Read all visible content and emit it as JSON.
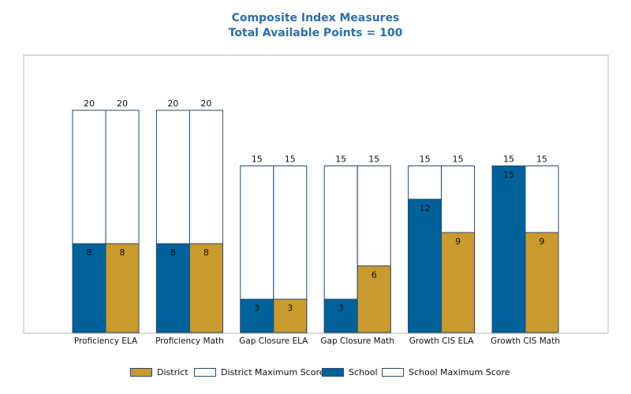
{
  "chart_data": {
    "type": "bar",
    "title": "Composite Index Measures",
    "subtitle": "Total Available Points = 100",
    "categories": [
      "Proficiency ELA",
      "Proficiency Math",
      "Gap Closure ELA",
      "Gap Closure Math",
      "Growth CIS ELA",
      "Growth CIS Math"
    ],
    "series": [
      {
        "name": "School",
        "color": "#00629b",
        "values": [
          8,
          8,
          3,
          3,
          12,
          15
        ]
      },
      {
        "name": "School Maximum Score",
        "color": "#ffffff",
        "values": [
          20,
          20,
          15,
          15,
          15,
          15
        ]
      },
      {
        "name": "District",
        "color": "#c99a2e",
        "values": [
          8,
          8,
          3,
          6,
          9,
          9
        ]
      },
      {
        "name": "District Maximum Score",
        "color": "#ffffff",
        "values": [
          20,
          20,
          15,
          15,
          15,
          15
        ]
      }
    ],
    "ylim": [
      0,
      25
    ],
    "grid": false,
    "legend_position": "bottom"
  },
  "legend": [
    {
      "label": "District",
      "color": "#c99a2e"
    },
    {
      "label": "District Maximum Score",
      "color": "#ffffff"
    },
    {
      "label": "School",
      "color": "#00629b"
    },
    {
      "label": "School Maximum Score",
      "color": "#ffffff"
    }
  ],
  "colors": {
    "title": "#2f6ea6",
    "outline": "#2a4a6a",
    "frame": "#b5b5b5"
  }
}
